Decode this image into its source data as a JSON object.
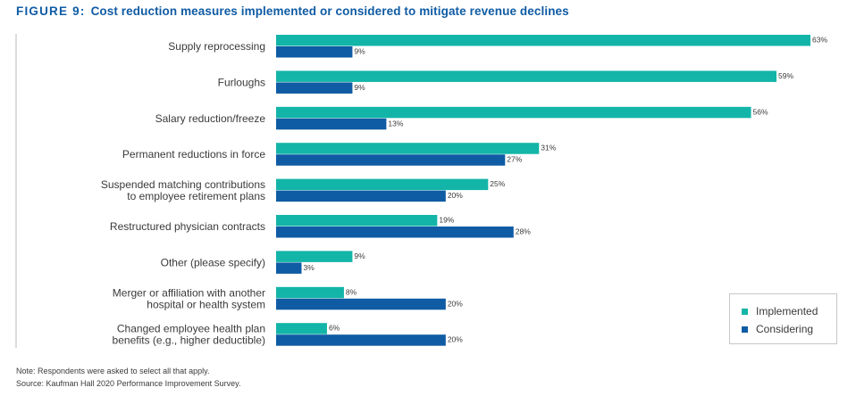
{
  "figure": {
    "label": "FIGURE 9:",
    "title": "Cost reduction measures implemented or considered to mitigate revenue declines"
  },
  "colors": {
    "implemented": "#13b5a8",
    "considering": "#0f5ba4",
    "title": "#0f5ba4",
    "text": "#3a3a3a",
    "axis": "#b8b8b8"
  },
  "chart_data": {
    "type": "bar",
    "orientation": "horizontal",
    "categories": [
      [
        "Supply reprocessing"
      ],
      [
        "Furloughs"
      ],
      [
        "Salary reduction/freeze"
      ],
      [
        "Permanent reductions in force"
      ],
      [
        "Suspended matching contributions",
        "to employee retirement plans"
      ],
      [
        "Restructured physician contracts"
      ],
      [
        "Other (please specify)"
      ],
      [
        "Merger or affiliation with another",
        "hospital or health system"
      ],
      [
        "Changed employee health plan",
        "benefits (e.g., higher deductible)"
      ]
    ],
    "series": [
      {
        "name": "Implemented",
        "values": [
          63,
          59,
          56,
          31,
          25,
          19,
          9,
          8,
          6
        ]
      },
      {
        "name": "Considering",
        "values": [
          9,
          9,
          13,
          27,
          20,
          28,
          3,
          20,
          20
        ]
      }
    ],
    "value_suffix": "%",
    "xlim": [
      0,
      63
    ],
    "legend_position": "bottom-right",
    "grid": false
  },
  "notes": [
    "Note: Respondents were asked to select all that apply.",
    "Source: Kaufman Hall 2020 Performance Improvement Survey."
  ]
}
